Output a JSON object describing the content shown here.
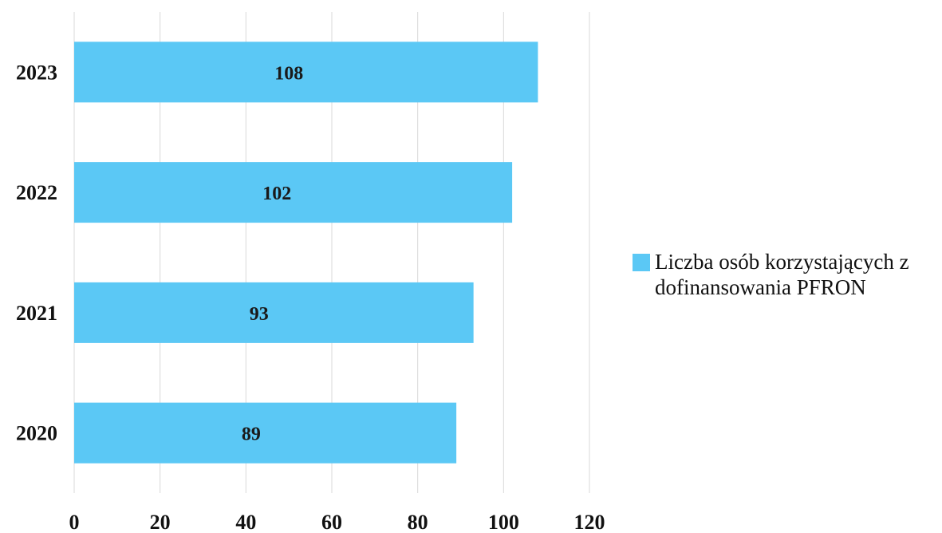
{
  "chart_data": {
    "type": "bar",
    "orientation": "horizontal",
    "categories": [
      "2023",
      "2022",
      "2021",
      "2020"
    ],
    "series": [
      {
        "name": "Liczba osób korzystających z dofinansowania PFRON",
        "values": [
          108,
          102,
          93,
          89
        ]
      }
    ],
    "xlim": [
      0,
      120
    ],
    "x_ticks": [
      "0",
      "20",
      "40",
      "60",
      "80",
      "100",
      "120"
    ],
    "grid": true,
    "legend_position": "right",
    "bar_color": "#5bc8f5"
  }
}
